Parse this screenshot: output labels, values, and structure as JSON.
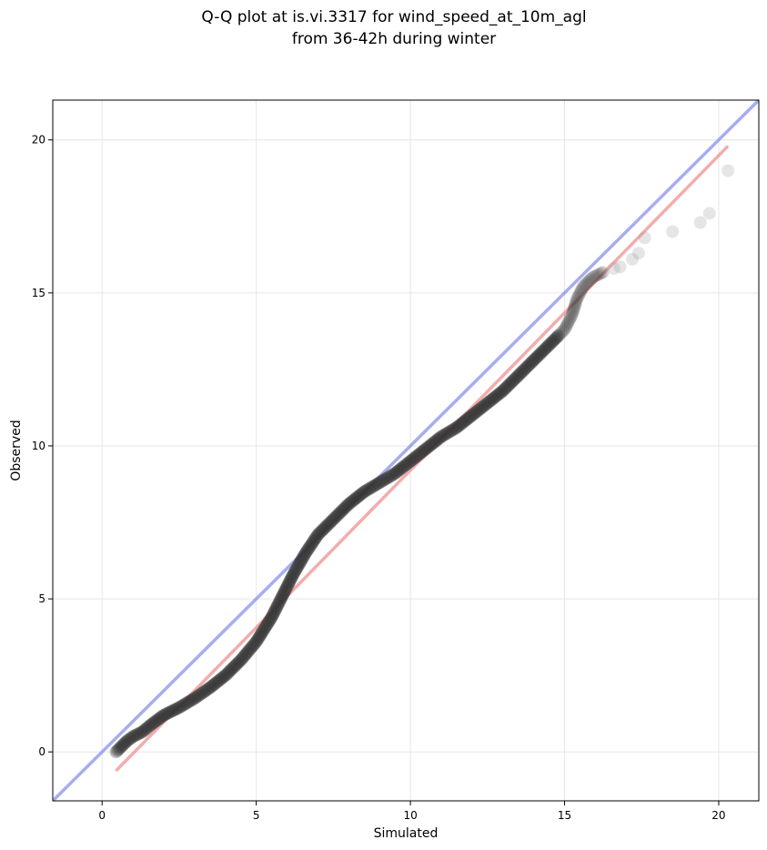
{
  "chart_data": {
    "type": "scatter",
    "title_lines": [
      "Q-Q plot at is.vi.3317 for wind_speed_at_10m_agl",
      "from 36-42h during winter"
    ],
    "xlabel": "Simulated",
    "ylabel": "Observed",
    "xlim": [
      -1.6,
      21.3
    ],
    "ylim": [
      -1.6,
      21.3
    ],
    "x_ticks": [
      0,
      5,
      10,
      15,
      20
    ],
    "y_ticks": [
      0,
      5,
      10,
      15,
      20
    ],
    "x_tick_labels": [
      "0",
      "5",
      "10",
      "15",
      "20"
    ],
    "y_tick_labels": [
      "0",
      "5",
      "10",
      "15",
      "20"
    ],
    "grid": true,
    "colors": {
      "identity_line": "#6e74e6",
      "fit_line": "#ee8080",
      "points": "#333333"
    },
    "identity_line": {
      "x": [
        -1.6,
        21.3
      ],
      "y": [
        -1.6,
        21.3
      ]
    },
    "fit_line": {
      "x": [
        0.45,
        20.3
      ],
      "y": [
        -0.62,
        19.8
      ]
    },
    "quantile_curve": [
      [
        0.45,
        0.0
      ],
      [
        0.6,
        0.15
      ],
      [
        0.8,
        0.35
      ],
      [
        1.0,
        0.5
      ],
      [
        1.3,
        0.65
      ],
      [
        1.6,
        0.9
      ],
      [
        2.0,
        1.2
      ],
      [
        2.5,
        1.45
      ],
      [
        3.0,
        1.75
      ],
      [
        3.5,
        2.1
      ],
      [
        4.0,
        2.5
      ],
      [
        4.5,
        3.0
      ],
      [
        5.0,
        3.6
      ],
      [
        5.5,
        4.4
      ],
      [
        5.8,
        5.0
      ],
      [
        6.2,
        5.8
      ],
      [
        6.6,
        6.5
      ],
      [
        7.0,
        7.1
      ],
      [
        7.5,
        7.6
      ],
      [
        8.0,
        8.1
      ],
      [
        8.5,
        8.5
      ],
      [
        9.0,
        8.8
      ],
      [
        9.5,
        9.1
      ],
      [
        10.0,
        9.5
      ],
      [
        10.5,
        9.9
      ],
      [
        11.0,
        10.3
      ],
      [
        11.5,
        10.6
      ],
      [
        12.0,
        11.0
      ],
      [
        12.5,
        11.4
      ],
      [
        13.0,
        11.8
      ],
      [
        13.5,
        12.3
      ],
      [
        14.0,
        12.8
      ],
      [
        14.5,
        13.3
      ],
      [
        15.0,
        13.8
      ],
      [
        15.25,
        14.3
      ],
      [
        15.4,
        14.8
      ],
      [
        15.6,
        15.2
      ],
      [
        15.9,
        15.5
      ],
      [
        16.3,
        15.7
      ]
    ],
    "tail_points": [
      {
        "x": 16.6,
        "y": 15.8
      },
      {
        "x": 16.8,
        "y": 15.85
      },
      {
        "x": 17.2,
        "y": 16.1
      },
      {
        "x": 17.4,
        "y": 16.3
      },
      {
        "x": 17.6,
        "y": 16.8
      },
      {
        "x": 18.5,
        "y": 17.0
      },
      {
        "x": 19.4,
        "y": 17.3
      },
      {
        "x": 19.7,
        "y": 17.6
      },
      {
        "x": 20.3,
        "y": 19.0
      }
    ]
  }
}
